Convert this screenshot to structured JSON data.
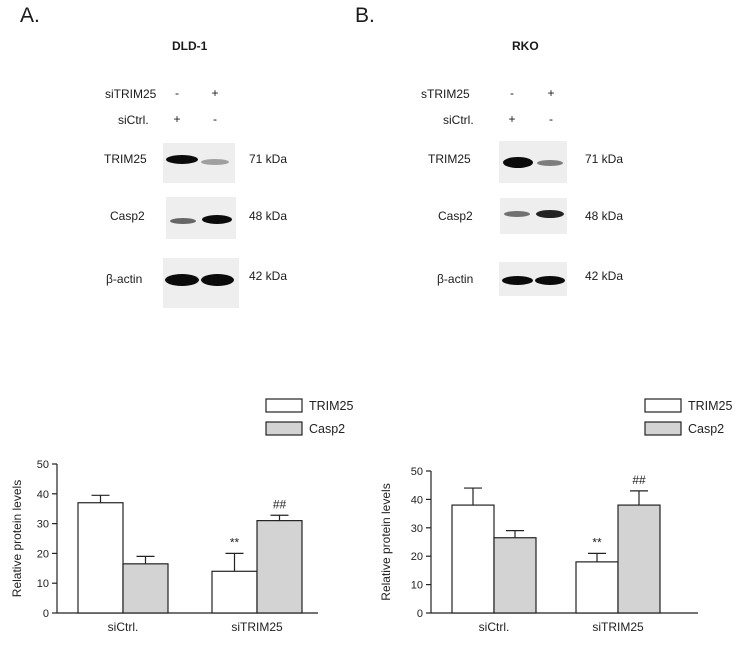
{
  "panels": [
    {
      "letter": "A.",
      "cell_line": "DLD-1",
      "treatment_rows": [
        {
          "label": "siTRIM25",
          "marks": [
            "-",
            "+"
          ]
        },
        {
          "label": "siCtrl.",
          "marks": [
            "+",
            "-"
          ]
        }
      ],
      "blots": [
        {
          "protein": "TRIM25",
          "size": "71 kDa",
          "lane_intensity": [
            1.0,
            0.35
          ]
        },
        {
          "protein": "Casp2",
          "size": "48 kDa",
          "lane_intensity": [
            0.55,
            1.0
          ]
        },
        {
          "protein": "β-actin",
          "size": "42 kDa",
          "lane_intensity": [
            1.0,
            1.0
          ]
        }
      ]
    },
    {
      "letter": "B.",
      "cell_line": "RKO",
      "treatment_rows": [
        {
          "label": "sTRIM25",
          "marks": [
            "-",
            "+"
          ]
        },
        {
          "label": "siCtrl.",
          "marks": [
            "+",
            "-"
          ]
        }
      ],
      "blots": [
        {
          "protein": "TRIM25",
          "size": "71 kDa",
          "lane_intensity": [
            1.0,
            0.45
          ]
        },
        {
          "protein": "Casp2",
          "size": "48 kDa",
          "lane_intensity": [
            0.5,
            0.85
          ]
        },
        {
          "protein": "β-actin",
          "size": "42 kDa",
          "lane_intensity": [
            1.0,
            1.0
          ]
        }
      ]
    }
  ],
  "chart_data": [
    {
      "type": "bar",
      "categories": [
        "siCtrl.",
        "siTRIM25"
      ],
      "series": [
        {
          "name": "TRIM25",
          "values": [
            37,
            14
          ],
          "errors": [
            2.5,
            6.0
          ],
          "color": "#ffffff"
        },
        {
          "name": "Casp2",
          "values": [
            16.5,
            31
          ],
          "errors": [
            2.5,
            1.8
          ],
          "color": "#d3d3d3"
        }
      ],
      "ylabel": "Relative protein levels",
      "ylim": [
        0,
        50
      ],
      "yticks": [
        0,
        10,
        20,
        30,
        40,
        50
      ],
      "annotations": [
        {
          "category": "siTRIM25",
          "series": "TRIM25",
          "text": "**"
        },
        {
          "category": "siTRIM25",
          "series": "Casp2",
          "text": "##"
        }
      ],
      "legend": "top-right",
      "grid": false
    },
    {
      "type": "bar",
      "categories": [
        "siCtrl.",
        "siTRIM25"
      ],
      "series": [
        {
          "name": "TRIM25",
          "values": [
            38,
            18
          ],
          "errors": [
            6.0,
            3.0
          ],
          "color": "#ffffff"
        },
        {
          "name": "Casp2",
          "values": [
            26.5,
            38
          ],
          "errors": [
            2.5,
            5.0
          ],
          "color": "#d3d3d3"
        }
      ],
      "ylabel": "Relative protein levels",
      "ylim": [
        0,
        50
      ],
      "yticks": [
        0,
        10,
        20,
        30,
        40,
        50
      ],
      "annotations": [
        {
          "category": "siTRIM25",
          "series": "TRIM25",
          "text": "**"
        },
        {
          "category": "siTRIM25",
          "series": "Casp2",
          "text": "##"
        }
      ],
      "legend": "top-right",
      "grid": false
    }
  ]
}
